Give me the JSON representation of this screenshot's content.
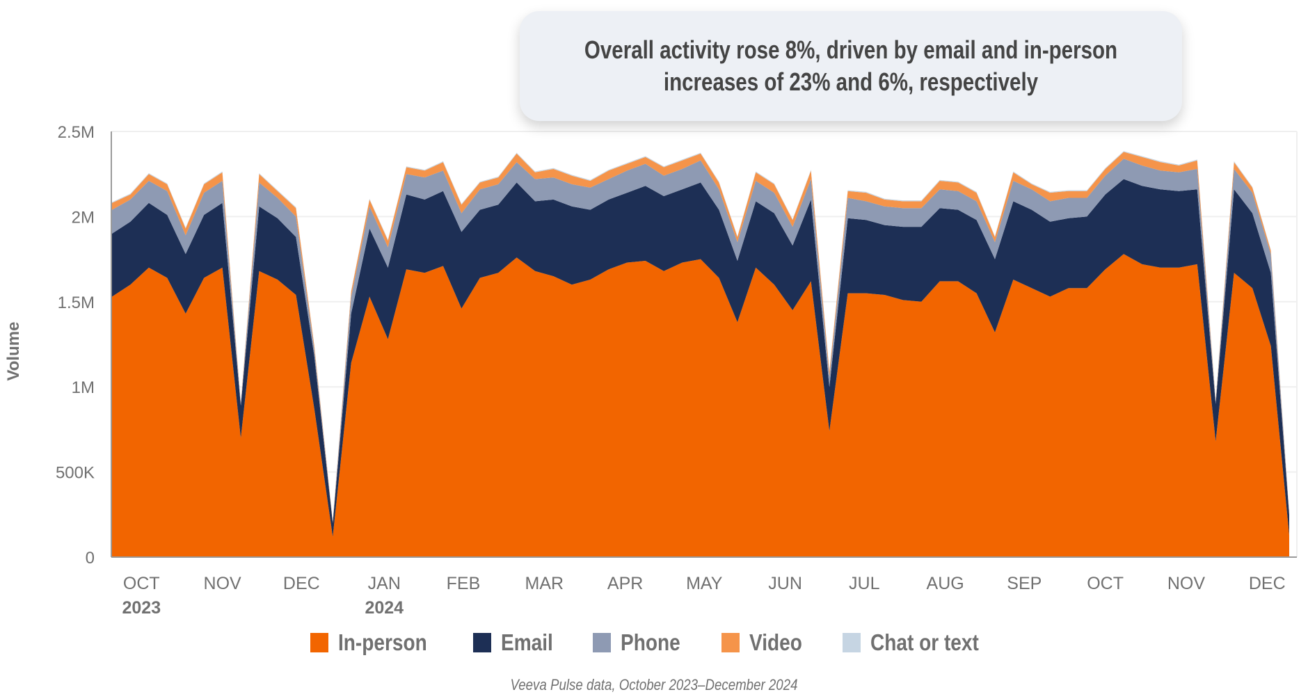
{
  "title": "Overall activity rose 8%, driven by email and in-person\nincreases of 23% and 6%, respectively",
  "source": "Veeva Pulse data, October 2023–December 2024",
  "colors": {
    "in_person": "#F26500",
    "email": "#1D2F55",
    "phone": "#8E9AB3",
    "video": "#F5944A",
    "chat": "#C6D5E3",
    "axis_text": "#707070",
    "title_bg": "#EDF0F5"
  },
  "legend": [
    {
      "label": "In-person",
      "color": "#F26500"
    },
    {
      "label": "Email",
      "color": "#1D2F55"
    },
    {
      "label": "Phone",
      "color": "#8E9AB3"
    },
    {
      "label": "Video",
      "color": "#F5944A"
    },
    {
      "label": "Chat or text",
      "color": "#C6D5E3"
    }
  ],
  "chart_data": {
    "type": "area",
    "stacked": true,
    "title": "Overall activity rose 8%, driven by email and in-person increases of 23% and 6%, respectively",
    "xlabel": "",
    "ylabel": "Volume",
    "ylim": [
      0,
      2500000
    ],
    "yticks": [
      0,
      500000,
      1000000,
      1500000,
      2000000,
      2500000
    ],
    "ytick_labels": [
      "0",
      "500K",
      "1M",
      "1.5M",
      "2M",
      "2.5M"
    ],
    "x_unit": "week",
    "x_count": 65,
    "xtick_labels": [
      {
        "label": "OCT",
        "year": "2023",
        "week": 1.6
      },
      {
        "label": "NOV",
        "year": "",
        "week": 6
      },
      {
        "label": "DEC",
        "year": "",
        "week": 10.3
      },
      {
        "label": "JAN",
        "year": "2024",
        "week": 14.8
      },
      {
        "label": "FEB",
        "year": "",
        "week": 19.1
      },
      {
        "label": "MAR",
        "year": "",
        "week": 23.5
      },
      {
        "label": "APR",
        "year": "",
        "week": 27.9
      },
      {
        "label": "MAY",
        "year": "",
        "week": 32.2
      },
      {
        "label": "JUN",
        "year": "",
        "week": 36.6
      },
      {
        "label": "JUL",
        "year": "",
        "week": 40.9
      },
      {
        "label": "AUG",
        "year": "",
        "week": 45.3
      },
      {
        "label": "SEP",
        "year": "",
        "week": 49.6
      },
      {
        "label": "OCT",
        "year": "",
        "week": 54
      },
      {
        "label": "NOV",
        "year": "",
        "week": 58.4
      },
      {
        "label": "DEC",
        "year": "",
        "week": 62.8
      }
    ],
    "grid": true,
    "legend_position": "bottom",
    "series": [
      {
        "name": "In-person",
        "values": [
          1530000,
          1600000,
          1700000,
          1640000,
          1430000,
          1640000,
          1700000,
          700000,
          1680000,
          1630000,
          1540000,
          870000,
          120000,
          1140000,
          1530000,
          1280000,
          1690000,
          1670000,
          1710000,
          1460000,
          1640000,
          1670000,
          1760000,
          1680000,
          1650000,
          1600000,
          1630000,
          1690000,
          1730000,
          1740000,
          1680000,
          1730000,
          1750000,
          1640000,
          1380000,
          1700000,
          1600000,
          1450000,
          1620000,
          740000,
          1550000,
          1550000,
          1540000,
          1510000,
          1500000,
          1620000,
          1620000,
          1550000,
          1320000,
          1630000,
          1580000,
          1530000,
          1580000,
          1580000,
          1690000,
          1780000,
          1720000,
          1700000,
          1700000,
          1720000,
          680000,
          1670000,
          1580000,
          1240000,
          130000
        ]
      },
      {
        "name": "Email",
        "values": [
          370000,
          370000,
          380000,
          370000,
          350000,
          370000,
          380000,
          190000,
          380000,
          360000,
          340000,
          310000,
          80000,
          290000,
          400000,
          420000,
          440000,
          430000,
          440000,
          450000,
          400000,
          400000,
          440000,
          410000,
          450000,
          460000,
          410000,
          410000,
          410000,
          440000,
          440000,
          430000,
          450000,
          400000,
          360000,
          390000,
          420000,
          380000,
          480000,
          260000,
          440000,
          430000,
          410000,
          430000,
          440000,
          430000,
          420000,
          430000,
          430000,
          460000,
          460000,
          440000,
          410000,
          420000,
          440000,
          440000,
          460000,
          460000,
          450000,
          440000,
          220000,
          490000,
          440000,
          430000,
          120000
        ]
      },
      {
        "name": "Phone",
        "values": [
          140000,
          130000,
          130000,
          140000,
          110000,
          130000,
          130000,
          10000,
          140000,
          120000,
          120000,
          40000,
          5000,
          100000,
          130000,
          120000,
          120000,
          130000,
          120000,
          110000,
          120000,
          120000,
          120000,
          130000,
          130000,
          130000,
          130000,
          120000,
          130000,
          130000,
          120000,
          120000,
          130000,
          120000,
          110000,
          120000,
          120000,
          110000,
          120000,
          60000,
          120000,
          110000,
          110000,
          110000,
          110000,
          110000,
          110000,
          110000,
          100000,
          120000,
          120000,
          120000,
          120000,
          110000,
          110000,
          120000,
          120000,
          110000,
          110000,
          120000,
          15000,
          120000,
          120000,
          110000,
          5000
        ]
      },
      {
        "name": "Video",
        "values": [
          40000,
          30000,
          40000,
          40000,
          40000,
          50000,
          50000,
          5000,
          50000,
          40000,
          50000,
          20000,
          5000,
          30000,
          40000,
          40000,
          40000,
          40000,
          50000,
          50000,
          40000,
          40000,
          50000,
          40000,
          50000,
          50000,
          40000,
          50000,
          40000,
          40000,
          50000,
          50000,
          40000,
          40000,
          30000,
          50000,
          50000,
          40000,
          50000,
          30000,
          40000,
          50000,
          40000,
          40000,
          40000,
          50000,
          50000,
          50000,
          30000,
          50000,
          30000,
          50000,
          40000,
          40000,
          40000,
          40000,
          50000,
          50000,
          40000,
          50000,
          5000,
          40000,
          30000,
          20000,
          5000
        ]
      },
      {
        "name": "Chat or text",
        "values": [
          5000,
          5000,
          5000,
          5000,
          5000,
          5000,
          5000,
          1000,
          5000,
          5000,
          5000,
          2000,
          1000,
          5000,
          5000,
          5000,
          5000,
          5000,
          5000,
          5000,
          5000,
          5000,
          5000,
          5000,
          5000,
          5000,
          5000,
          5000,
          5000,
          5000,
          5000,
          5000,
          5000,
          5000,
          5000,
          5000,
          5000,
          5000,
          5000,
          2000,
          5000,
          5000,
          5000,
          5000,
          5000,
          5000,
          5000,
          5000,
          5000,
          5000,
          5000,
          5000,
          5000,
          5000,
          5000,
          5000,
          5000,
          5000,
          5000,
          5000,
          1000,
          5000,
          5000,
          5000,
          1000
        ]
      }
    ]
  }
}
